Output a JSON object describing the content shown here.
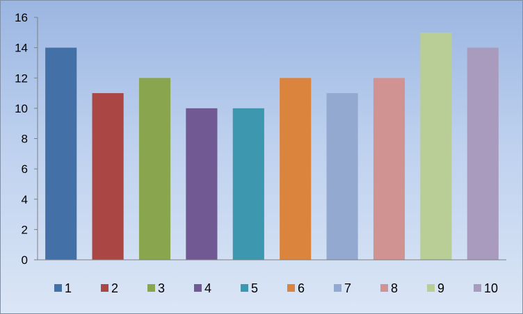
{
  "chart_data": {
    "type": "bar",
    "categories": [
      "1",
      "2",
      "3",
      "4",
      "5",
      "6",
      "7",
      "8",
      "9",
      "10"
    ],
    "values": [
      14,
      11,
      12,
      10,
      10,
      12,
      11,
      12,
      15,
      14
    ],
    "colors": [
      "#4470a8",
      "#aa4744",
      "#89a54e",
      "#715a93",
      "#3d97af",
      "#db843d",
      "#93a9cf",
      "#d19392",
      "#b9cd97",
      "#a99bbd"
    ],
    "title": "",
    "xlabel": "",
    "ylabel": "",
    "ylim": [
      0,
      16
    ],
    "yticks": [
      "0",
      "2",
      "4",
      "6",
      "8",
      "10",
      "12",
      "14",
      "16"
    ],
    "grid": false,
    "legend": {
      "position": "bottom",
      "entries": [
        "1",
        "2",
        "3",
        "4",
        "5",
        "6",
        "7",
        "8",
        "9",
        "10"
      ]
    }
  }
}
